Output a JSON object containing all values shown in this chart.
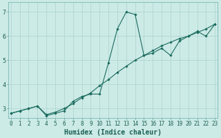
{
  "title": "",
  "xlabel": "Humidex (Indice chaleur)",
  "x_min": 0,
  "x_max": 23,
  "y_min": 2.6,
  "y_max": 7.4,
  "bg_color": "#cceae6",
  "grid_color": "#aad4cf",
  "line_color": "#1a6b5e",
  "line1_y": [
    2.8,
    2.9,
    3.0,
    3.1,
    2.7,
    2.8,
    2.9,
    3.3,
    3.5,
    3.6,
    3.6,
    4.9,
    6.3,
    7.0,
    6.9,
    5.2,
    5.3,
    5.5,
    5.2,
    5.8,
    6.0,
    6.2,
    6.0,
    6.5
  ],
  "line2_y": [
    2.8,
    2.9,
    3.0,
    3.1,
    2.75,
    2.85,
    3.0,
    3.2,
    3.45,
    3.65,
    3.95,
    4.2,
    4.5,
    4.75,
    5.0,
    5.2,
    5.4,
    5.6,
    5.75,
    5.9,
    6.0,
    6.15,
    6.3,
    6.5
  ],
  "tick_fontsize": 5.5,
  "label_fontsize": 7,
  "marker": "D",
  "marker_size": 1.8,
  "linewidth": 0.8,
  "yticks": [
    3,
    4,
    5,
    6,
    7
  ]
}
